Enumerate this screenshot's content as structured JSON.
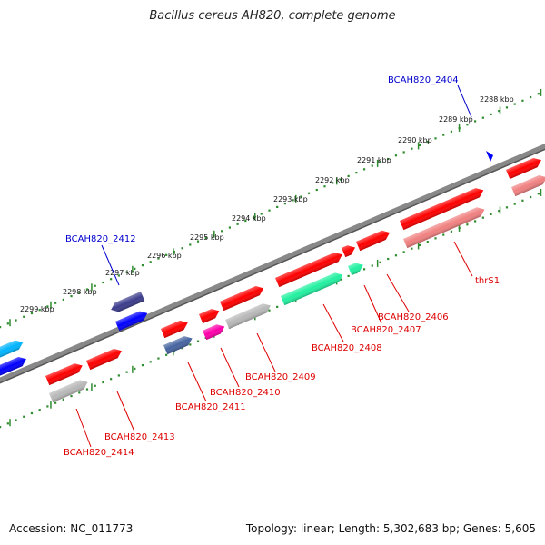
{
  "title": "Bacillus cereus AH820, complete genome",
  "footer": {
    "accession": "Accession: NC_011773",
    "topology": "Topology: linear; Length: 5,302,683 bp; Genes: 5,605"
  },
  "colors": {
    "backbone": "#888888",
    "ruler": "#2e8b2e",
    "label_red": "#dd0000",
    "label_blue": "#0000cc",
    "red": "#ff0000",
    "pink": "#f08080",
    "gray": "#b8b8b8",
    "green": "#22f0a0",
    "magenta": "#ff00aa",
    "navy": "#3c3c8c",
    "blue": "#0000ff",
    "cyan": "#00b4ff",
    "steel": "#4664a0"
  },
  "kbp_labels": [
    "2288 kbp",
    "2289 kbp",
    "2290 kbp",
    "2291 kbp",
    "2292 kbp",
    "2293 kbp",
    "2294 kbp",
    "2295 kbp",
    "2296 kbp",
    "2297 kbp",
    "2298 kbp",
    "2299 kbp"
  ],
  "genes": [
    {
      "name": "BCAH820_2404",
      "color": "blue"
    },
    {
      "name": "BCAH820_2412",
      "color": "blue"
    },
    {
      "name": "thrS1",
      "color": "red"
    },
    {
      "name": "BCAH820_2406",
      "color": "red"
    },
    {
      "name": "BCAH820_2407",
      "color": "red"
    },
    {
      "name": "BCAH820_2408",
      "color": "red"
    },
    {
      "name": "BCAH820_2409",
      "color": "red"
    },
    {
      "name": "BCAH820_2410",
      "color": "red"
    },
    {
      "name": "BCAH820_2411",
      "color": "red"
    },
    {
      "name": "BCAH820_2413",
      "color": "red"
    },
    {
      "name": "BCAH820_2414",
      "color": "red"
    }
  ]
}
